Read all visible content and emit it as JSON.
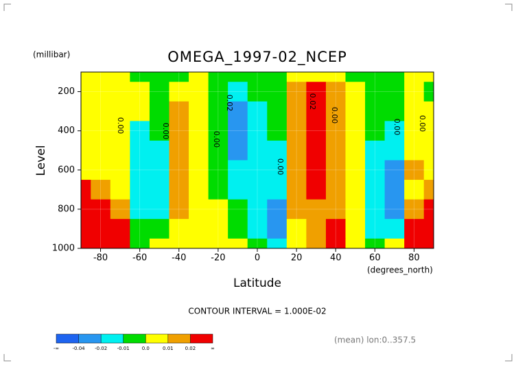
{
  "chart_data": {
    "type": "contour",
    "title": "OMEGA_1997-02_NCEP",
    "y_unit": "(millibar)",
    "ylabel": "Level",
    "xlabel": "Latitude",
    "x_unit": "(degrees_north)",
    "subtitle": "CONTOUR INTERVAL = 1.000E-02",
    "note": "(mean) lon:0..357.5",
    "xlim": [
      -90,
      90
    ],
    "ylim": [
      1000,
      100
    ],
    "xticks": [
      -80,
      -60,
      -40,
      -20,
      0,
      20,
      40,
      60,
      80
    ],
    "yticks": [
      200,
      400,
      600,
      800,
      1000
    ],
    "x": [
      -90,
      -80,
      -70,
      -60,
      -50,
      -40,
      -30,
      -20,
      -10,
      0,
      10,
      20,
      30,
      40,
      50,
      60,
      70,
      80,
      90
    ],
    "y": [
      100,
      200,
      300,
      400,
      500,
      600,
      700,
      800,
      900,
      1000
    ],
    "z": [
      [
        0.005,
        0.005,
        0.005,
        -0.005,
        -0.005,
        -0.005,
        0.005,
        -0.005,
        -0.005,
        -0.005,
        -0.005,
        0.005,
        0.005,
        0.005,
        -0.005,
        -0.005,
        -0.005,
        0.005,
        0.005
      ],
      [
        0.005,
        0.005,
        0.005,
        0.005,
        -0.005,
        0.005,
        0.005,
        -0.005,
        -0.015,
        -0.005,
        -0.005,
        0.015,
        0.025,
        0.015,
        0.005,
        -0.005,
        -0.005,
        0.005,
        -0.005
      ],
      [
        0.005,
        0.005,
        0.005,
        0.005,
        -0.005,
        0.015,
        0.005,
        -0.005,
        -0.03,
        -0.015,
        -0.005,
        0.015,
        0.03,
        0.015,
        0.005,
        -0.005,
        -0.005,
        0.005,
        0.005
      ],
      [
        0.005,
        0.005,
        0.005,
        -0.015,
        -0.005,
        0.015,
        0.005,
        -0.005,
        -0.03,
        -0.015,
        -0.005,
        0.015,
        0.03,
        0.015,
        0.005,
        -0.005,
        -0.015,
        0.005,
        0.005
      ],
      [
        0.005,
        0.005,
        0.005,
        -0.015,
        -0.015,
        0.015,
        0.005,
        -0.005,
        -0.03,
        -0.015,
        -0.015,
        0.015,
        0.03,
        0.015,
        0.005,
        -0.015,
        -0.015,
        0.005,
        0.005
      ],
      [
        0.005,
        0.005,
        0.005,
        -0.015,
        -0.015,
        0.015,
        0.005,
        -0.005,
        -0.015,
        -0.015,
        -0.015,
        0.015,
        0.03,
        0.015,
        0.005,
        -0.015,
        -0.03,
        0.015,
        0.005
      ],
      [
        0.03,
        0.015,
        0.005,
        -0.015,
        -0.015,
        0.015,
        0.005,
        -0.005,
        -0.015,
        -0.015,
        -0.015,
        0.015,
        0.03,
        0.015,
        0.005,
        -0.015,
        -0.03,
        0.005,
        0.015
      ],
      [
        0.05,
        0.04,
        0.015,
        -0.015,
        -0.015,
        0.015,
        0.005,
        0.005,
        -0.005,
        -0.015,
        -0.03,
        0.015,
        0.015,
        0.015,
        0.005,
        -0.015,
        -0.03,
        0.015,
        0.025
      ],
      [
        0.05,
        0.05,
        0.03,
        -0.005,
        -0.005,
        0.005,
        0.005,
        0.005,
        -0.005,
        -0.015,
        -0.03,
        0.005,
        0.015,
        0.025,
        0.005,
        -0.015,
        -0.015,
        0.025,
        0.025
      ],
      [
        0.05,
        0.05,
        0.03,
        -0.005,
        0.005,
        0.005,
        0.005,
        0.005,
        0.005,
        -0.005,
        -0.015,
        0.005,
        0.015,
        0.025,
        0.005,
        -0.005,
        0.005,
        0.025,
        0.025
      ]
    ],
    "colorbar": {
      "ticks": [
        "-∞",
        -0.04,
        -0.02,
        -0.01,
        {
          "value": 0,
          "label": "0.0"
        },
        0.01,
        0.02,
        "∞"
      ],
      "colors": [
        "#1e64f0",
        "#2896f0",
        "#00f0f0",
        "#00dc00",
        "#ffff00",
        "#f0a000",
        "#f00000"
      ]
    },
    "contour_labels": [
      "0.00",
      "0.00",
      "0.00",
      "0.02",
      "0.00",
      "0.02",
      "0.00",
      "0.00",
      "0.00"
    ]
  }
}
